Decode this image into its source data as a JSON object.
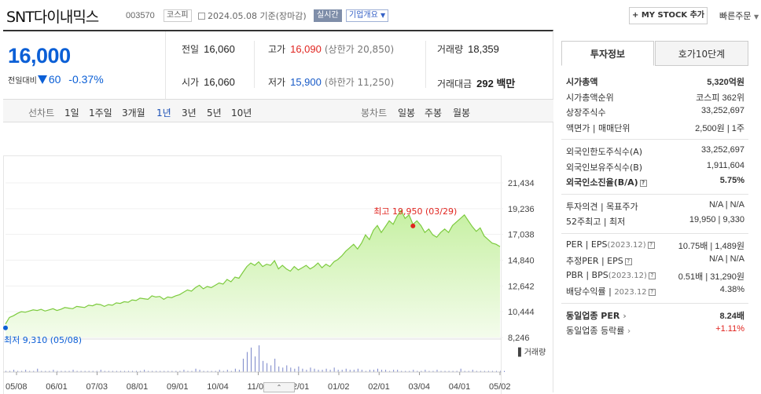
{
  "header": {
    "stock_name": "SNT다이내믹스",
    "stock_code": "003570",
    "market_tag": "코스피",
    "date": "2024.05.08",
    "date_suffix": "기준(장마감)",
    "realtime_tag": "실시간",
    "overview_tag": "기업개요",
    "mystock_btn": "+ MY STOCK 추가",
    "quick_order": "빠른주문",
    "quick_order_arrow": "▼"
  },
  "price": {
    "current": "16,000",
    "diff_label": "전일대비",
    "diff": "60",
    "rate": "-0.37%"
  },
  "quote": {
    "prev_close_label": "전일",
    "prev_close": "16,060",
    "open_label": "시가",
    "open": "16,060",
    "high_label": "고가",
    "high": "16,090",
    "upper_limit": "(상한가 20,850)",
    "low_label": "저가",
    "low": "15,900",
    "lower_limit": "(하한가 11,250)",
    "volume_label": "거래량",
    "volume": "18,359",
    "amount_label": "거래대금",
    "amount": "292 백만"
  },
  "chart_tabs": {
    "line_label": "선차트",
    "periods": [
      "1일",
      "1주일",
      "3개월",
      "1년",
      "3년",
      "5년",
      "10년"
    ],
    "active_period": "1년",
    "candle_label": "봉차트",
    "candle_periods": [
      "일봉",
      "주봉",
      "월봉"
    ]
  },
  "chart_data": {
    "type": "area",
    "title": "",
    "ylim": [
      8246,
      21434
    ],
    "y_ticks": [
      "21,434",
      "19,236",
      "17,038",
      "14,840",
      "12,642",
      "10,444",
      "8,246"
    ],
    "x_ticks": [
      "05/08",
      "06/01",
      "07/03",
      "08/01",
      "09/01",
      "10/04",
      "11/01",
      "12/01",
      "01/02",
      "02/01",
      "03/04",
      "04/01",
      "05/02"
    ],
    "max_label": "최고 19,950 (03/29)",
    "min_label": "최저 9,310 (05/08)",
    "volume_label": "거래량",
    "series": [
      {
        "values": [
          9400,
          9950,
          10100,
          10300,
          10450,
          10400,
          10500,
          10600,
          10550,
          10650,
          10500,
          10600,
          10700,
          10550,
          10650,
          10800,
          10750,
          10700,
          10900,
          10850,
          10800,
          11000,
          10950,
          11100,
          11050,
          10900,
          11050,
          11000,
          11200,
          11150,
          11300,
          11250,
          11450,
          11400,
          11600,
          11550,
          11500,
          11800,
          11700,
          11750,
          11500,
          11700,
          11650,
          11800,
          11900,
          12100,
          12300,
          12200,
          12500,
          12700,
          12400,
          12600,
          12500,
          12700,
          12900,
          12800,
          13200,
          13000,
          13400,
          13300,
          13800,
          14300,
          14600,
          14400,
          14700,
          14300,
          14500,
          14400,
          14800,
          14100,
          14400,
          14100,
          13900,
          14300,
          14000,
          14200,
          14400,
          14100,
          14300,
          14600,
          14200,
          14500,
          14300,
          14700,
          14900,
          15200,
          15600,
          15900,
          16200,
          15800,
          16300,
          17000,
          16600,
          17400,
          17800,
          17200,
          17700,
          18200,
          17900,
          18600,
          19100,
          18400,
          18700,
          17900,
          18200,
          17800,
          17200,
          17500,
          17000,
          16800,
          17200,
          17500,
          17200,
          17800,
          18100,
          18400,
          18700,
          18200,
          17700,
          17300,
          17600,
          16900,
          16600,
          16300,
          16200,
          16000
        ]
      }
    ],
    "volume": [
      1,
      1,
      2,
      1,
      1,
      2,
      1,
      1,
      3,
      1,
      1,
      1,
      2,
      1,
      1,
      1,
      1,
      2,
      1,
      1,
      1,
      1,
      1,
      1,
      2,
      1,
      1,
      1,
      1,
      1,
      1,
      1,
      1,
      1,
      1,
      2,
      1,
      1,
      1,
      1,
      1,
      1,
      1,
      1,
      1,
      2,
      1,
      1,
      3,
      2,
      1,
      1,
      1,
      1,
      2,
      1,
      2,
      1,
      3,
      2,
      12,
      18,
      22,
      14,
      24,
      10,
      8,
      6,
      12,
      5,
      4,
      6,
      4,
      3,
      5,
      3,
      2,
      4,
      3,
      2,
      2,
      3,
      2,
      4,
      2,
      2,
      3,
      2,
      2,
      3,
      2,
      1,
      2,
      2,
      3,
      2,
      2,
      1,
      2,
      2,
      1,
      1,
      1,
      2,
      1,
      1,
      2,
      1,
      1,
      2,
      1,
      1,
      1,
      1,
      1,
      3,
      1,
      1,
      2,
      1,
      1,
      1,
      1,
      1,
      1,
      1,
      1
    ]
  },
  "info_tabs": {
    "invest": "투자정보",
    "hoga": "호가10단계"
  },
  "info": {
    "g1": [
      {
        "k": "시가총액",
        "v": "5,320억원",
        "kb": true,
        "vb": true
      },
      {
        "k": "시가총액순위",
        "v": "코스피 362위"
      },
      {
        "k": "상장주식수",
        "v": "33,252,697"
      },
      {
        "k": "액면가 | 매매단위",
        "v": "2,500원 | 1주"
      }
    ],
    "g2": [
      {
        "k": "외국인한도주식수(A)",
        "v": "33,252,697"
      },
      {
        "k": "외국인보유주식수(B)",
        "v": "1,911,604"
      },
      {
        "k": "외국인소진율(B/A)",
        "v": "5.75%",
        "kb": true,
        "vb": true,
        "help": "?"
      }
    ],
    "g3": [
      {
        "k": "투자의견 | 목표주가",
        "v": "N/A | N/A"
      },
      {
        "k": "52주최고 | 최저",
        "v": "19,950 | 9,330"
      }
    ],
    "g4": [
      {
        "k": "PER | EPS",
        "ksub": "(2023.12)",
        "v": "10.75배 | 1,489원",
        "help": "?"
      },
      {
        "k": "추정PER | EPS",
        "v": "N/A | N/A",
        "help": "?"
      },
      {
        "k": "PBR | BPS",
        "ksub": "(2023.12)",
        "v": "0.51배 | 31,290원",
        "help": "?"
      },
      {
        "k": "배당수익률 | ",
        "ksub": "2023.12",
        "v": "4.38%",
        "help": "?"
      }
    ],
    "g5": [
      {
        "k": "동일업종 PER",
        "v": "8.24배",
        "kb": true,
        "vb": true,
        "arrow": "›"
      },
      {
        "k": "동일업종 등락률",
        "v": "+1.11%",
        "red": true,
        "arrow": "›"
      }
    ]
  },
  "expand_label": "⌃"
}
